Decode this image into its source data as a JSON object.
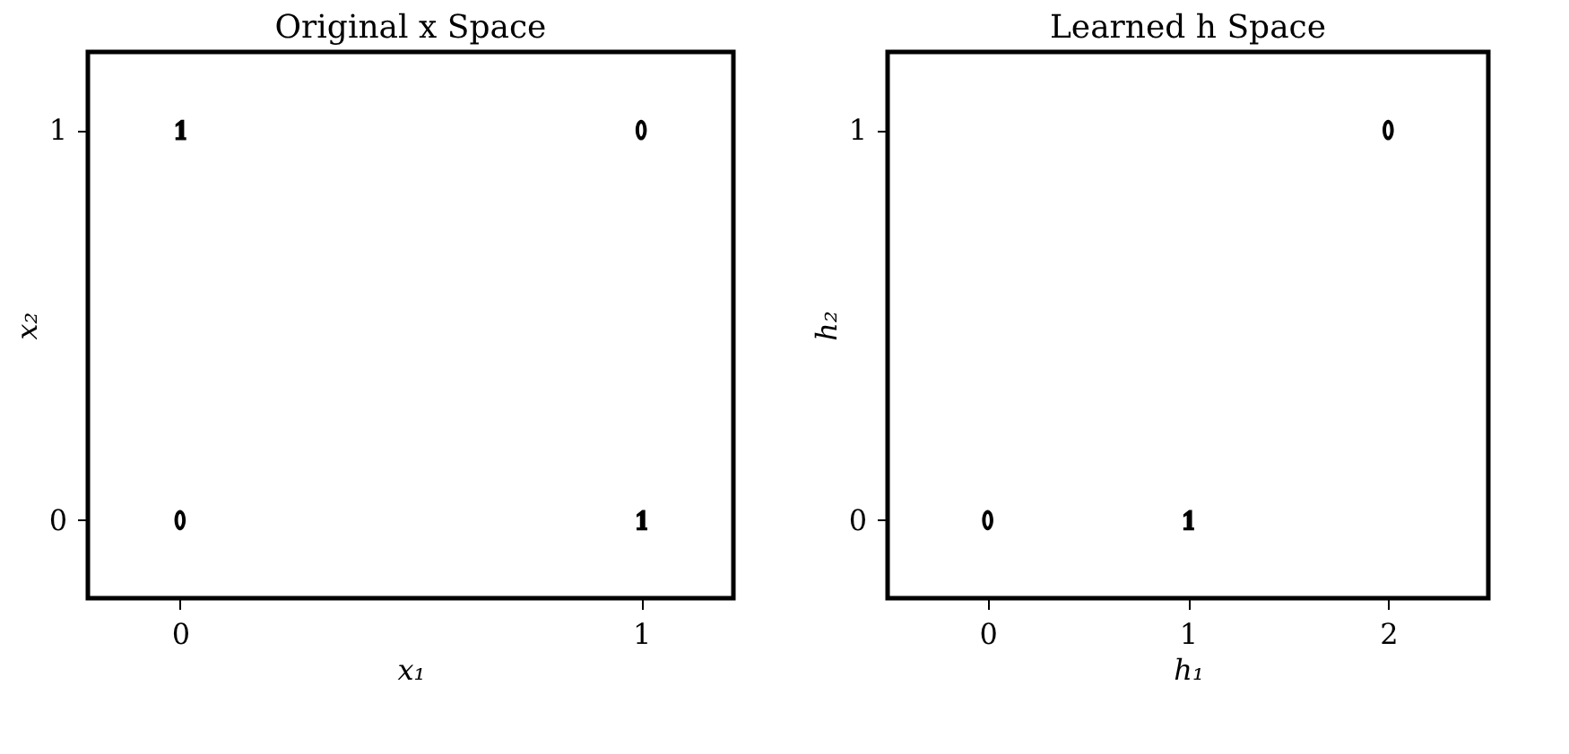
{
  "chart_data": [
    {
      "type": "scatter",
      "title": "Original x Space",
      "xlabel": "x₁",
      "ylabel": "x₂",
      "xlim": [
        -0.2,
        1.2
      ],
      "ylim": [
        -0.2,
        1.2
      ],
      "xticks": [
        0,
        1
      ],
      "yticks": [
        0,
        1
      ],
      "grid": false,
      "marker": "none",
      "series": [
        {
          "name": "0",
          "color": "#000000",
          "x": [
            0,
            1
          ],
          "values": [
            0,
            1
          ]
        },
        {
          "name": "1",
          "color": "#000000",
          "x": [
            0,
            1
          ],
          "values": [
            1,
            0
          ]
        }
      ]
    },
    {
      "type": "scatter",
      "title": "Learned h Space",
      "xlabel": "h₁",
      "ylabel": "h₂",
      "xlim": [
        -0.5,
        2.5
      ],
      "ylim": [
        -0.2,
        1.2
      ],
      "xticks": [
        0,
        1,
        2
      ],
      "yticks": [
        0,
        1
      ],
      "grid": false,
      "marker": "none",
      "series": [
        {
          "name": "0",
          "color": "#000000",
          "x": [
            0,
            2
          ],
          "values": [
            0,
            1
          ]
        },
        {
          "name": "1",
          "color": "#000000",
          "x": [
            1
          ],
          "values": [
            0
          ]
        }
      ]
    }
  ]
}
